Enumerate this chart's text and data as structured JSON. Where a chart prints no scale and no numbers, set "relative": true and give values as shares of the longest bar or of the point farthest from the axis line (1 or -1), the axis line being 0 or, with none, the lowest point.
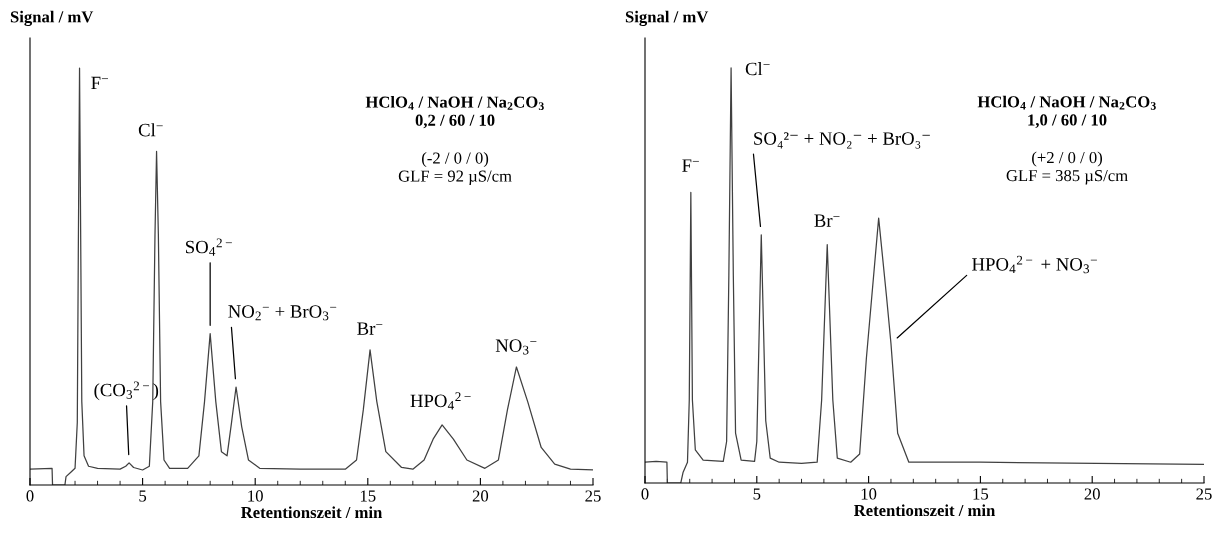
{
  "chart_data": [
    {
      "type": "line",
      "relative": true,
      "title": "HClO$_{4}$ / NaOH / Na$_{2}$CO$_{3}$\n0,2 / 60 / 10",
      "subtitle": "(-2 / 0 / 0)\nGLF = 92 µS/cm",
      "xlabel": "Retentionszeit / min",
      "ylabel": "Signal / mV",
      "xlim": [
        0,
        25
      ],
      "xticks": [
        0,
        5,
        10,
        15,
        20,
        25
      ],
      "grid": false,
      "legend": false,
      "tick_labels": "x",
      "series": [
        {
          "color": "#404040",
          "x": [
            0,
            0.98,
            1.0,
            1.55,
            1.6,
            1.8,
            2.0,
            2.1,
            2.15,
            2.2,
            2.25,
            2.3,
            2.4,
            2.6,
            3.0,
            4.0,
            4.25,
            4.4,
            4.6,
            5.0,
            5.3,
            5.45,
            5.55,
            5.62,
            5.7,
            5.8,
            5.95,
            6.2,
            7.0,
            7.5,
            7.75,
            8.0,
            8.25,
            8.5,
            8.75,
            8.95,
            9.15,
            9.4,
            9.7,
            10.2,
            12,
            14,
            14.5,
            14.8,
            15.1,
            15.4,
            15.8,
            16.5,
            17,
            17.5,
            17.9,
            18.3,
            18.8,
            19.4,
            20.2,
            20.8,
            21.2,
            21.6,
            22.1,
            22.7,
            23.3,
            24,
            25
          ],
          "values": [
            0.038,
            0.04,
            0,
            0,
            0.02,
            0.03,
            0.04,
            0.15,
            0.6,
            1.0,
            0.6,
            0.2,
            0.07,
            0.045,
            0.04,
            0.038,
            0.045,
            0.053,
            0.042,
            0.036,
            0.045,
            0.2,
            0.6,
            0.8,
            0.6,
            0.2,
            0.06,
            0.04,
            0.04,
            0.07,
            0.2,
            0.363,
            0.2,
            0.08,
            0.07,
            0.15,
            0.235,
            0.14,
            0.06,
            0.04,
            0.038,
            0.038,
            0.06,
            0.18,
            0.324,
            0.2,
            0.08,
            0.042,
            0.038,
            0.06,
            0.11,
            0.144,
            0.11,
            0.06,
            0.04,
            0.06,
            0.18,
            0.283,
            0.2,
            0.09,
            0.05,
            0.038,
            0.036
          ]
        }
      ],
      "annotations": [
        {
          "text": "F$^{−}$",
          "x": 2.2,
          "y": 1.0
        },
        {
          "text": "(CO$_{3}$$^{2−}$)",
          "x": 4.4,
          "y": 0.053
        },
        {
          "text": "Cl$^{−}$",
          "x": 5.62,
          "y": 0.8
        },
        {
          "text": "SO$_{4}$$^{2−}$",
          "x": 8.0,
          "y": 0.363
        },
        {
          "text": "NO$_{2}$$^{−}$ + BrO$_{3}$$^{−}$",
          "x": 9.15,
          "y": 0.235
        },
        {
          "text": "Br$^{−}$",
          "x": 15.1,
          "y": 0.324
        },
        {
          "text": "HPO$_{4}$$^{2−}$",
          "x": 18.3,
          "y": 0.144
        },
        {
          "text": "NO$_{3}$$^{−}$",
          "x": 21.6,
          "y": 0.283
        }
      ]
    },
    {
      "type": "line",
      "relative": true,
      "title": "HClO$_{4}$ / NaOH / Na$_{2}$CO$_{3}$\n1,0 / 60 / 10",
      "subtitle": "(+2 / 0 / 0)\nGLF = 385 µS/cm",
      "xlabel": "Retentionszeit / min",
      "ylabel": "Signal / mV",
      "xlim": [
        0,
        25
      ],
      "xticks": [
        0,
        5,
        10,
        15,
        20,
        25
      ],
      "grid": false,
      "legend": false,
      "tick_labels": "x",
      "series": [
        {
          "color": "#404040",
          "x": [
            0,
            0.5,
            0.98,
            1.0,
            1.6,
            1.7,
            1.9,
            1.98,
            2.05,
            2.12,
            2.25,
            2.6,
            3.5,
            3.65,
            3.75,
            3.85,
            3.95,
            4.05,
            4.3,
            4.9,
            5.0,
            5.2,
            5.4,
            5.6,
            6.0,
            7.0,
            7.7,
            7.9,
            8.15,
            8.4,
            8.6,
            9.2,
            9.6,
            9.9,
            10.45,
            10.8,
            11.0,
            11.3,
            11.8,
            15,
            25
          ],
          "values": [
            0.05,
            0.052,
            0.05,
            0,
            0,
            0.025,
            0.05,
            0.2,
            0.7,
            0.2,
            0.08,
            0.055,
            0.052,
            0.1,
            0.5,
            1.0,
            0.5,
            0.12,
            0.055,
            0.052,
            0.1,
            0.598,
            0.15,
            0.06,
            0.05,
            0.047,
            0.05,
            0.2,
            0.574,
            0.2,
            0.06,
            0.05,
            0.07,
            0.3,
            0.638,
            0.45,
            0.336,
            0.12,
            0.05,
            0.05,
            0.045
          ]
        }
      ],
      "annotations": [
        {
          "text": "F$^{−}$",
          "x": 2.05,
          "y": 0.7
        },
        {
          "text": "Cl$^{−}$",
          "x": 3.85,
          "y": 1.0
        },
        {
          "text": "SO₄²⁻ + NO₂⁻ + BrO₃⁻",
          "x": 5.2,
          "y": 0.598
        },
        {
          "text": "Br$^{−}$",
          "x": 8.15,
          "y": 0.574
        },
        {
          "text": "HPO$_{4}$$^{2−}$ + NO$_{3}$$^{−}$",
          "x": 11.0,
          "y": 0.336
        }
      ]
    }
  ]
}
